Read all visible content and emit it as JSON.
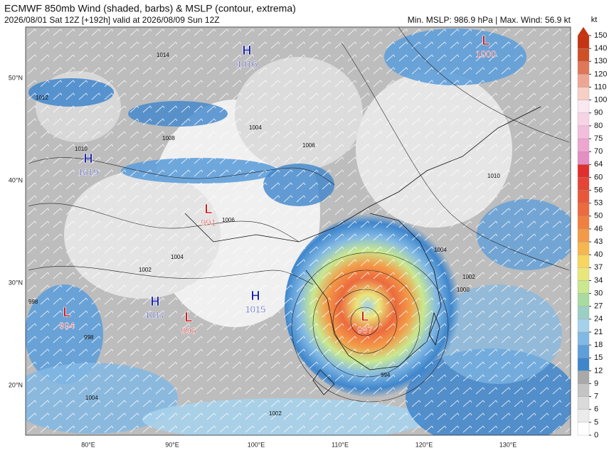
{
  "header": {
    "title": "ECMWF 850mb Wind (shaded, barbs) & MSLP (contour, extrema)",
    "subtitle": "2026/08/01 Sat 12Z [+192h] valid at 2026/08/09 Sun 12Z",
    "stats": "Min. MSLP: 986.9 hPa | Max. Wind: 56.9 kt"
  },
  "colorbar": {
    "unit": "kt",
    "levels": [
      0,
      5,
      6,
      7,
      9,
      12,
      15,
      18,
      21,
      24,
      27,
      30,
      34,
      37,
      40,
      43,
      46,
      50,
      53,
      56,
      60,
      64,
      70,
      75,
      80,
      90,
      100,
      110,
      120,
      130,
      140,
      150
    ],
    "colors": [
      "#ffffff",
      "#ebebeb",
      "#dadada",
      "#c4c4c4",
      "#a9a9a9",
      "#3f86cc",
      "#5f9fd9",
      "#82b9e4",
      "#a6d1eb",
      "#9ccfc4",
      "#a9dba0",
      "#c9e88f",
      "#e9e77a",
      "#f7d660",
      "#f6b650",
      "#f39a48",
      "#ef8040",
      "#ec6a3e",
      "#e9573b",
      "#e54536",
      "#e02f2f",
      "#e38fc4",
      "#eca6cf",
      "#f2bedb",
      "#f7d3e6",
      "#fbe7f0",
      "#f6cfc5",
      "#eea694",
      "#df7758",
      "#cf5028",
      "#c53412"
    ]
  },
  "axes": {
    "lat": [
      "50°N",
      "40°N",
      "30°N",
      "20°N"
    ],
    "lon": [
      "80°E",
      "90°E",
      "100°E",
      "110°E",
      "120°E",
      "130°E"
    ]
  },
  "extrema": [
    {
      "kind": "H",
      "value": "1016"
    },
    {
      "kind": "L",
      "value": "1000"
    },
    {
      "kind": "H",
      "value": "1019"
    },
    {
      "kind": "L",
      "value": "991"
    },
    {
      "kind": "H",
      "value": "1017"
    },
    {
      "kind": "L",
      "value": "996"
    },
    {
      "kind": "H",
      "value": "1015"
    },
    {
      "kind": "L",
      "value": "994"
    },
    {
      "kind": "L",
      "value": "987"
    }
  ],
  "isobar_labels": [
    "1014",
    "1012",
    "1010",
    "1008",
    "1004",
    "1006",
    "1002",
    "1004",
    "1010",
    "998",
    "994",
    "998",
    "1002",
    "1004",
    "1006",
    "1000",
    "1004",
    "1002"
  ]
}
